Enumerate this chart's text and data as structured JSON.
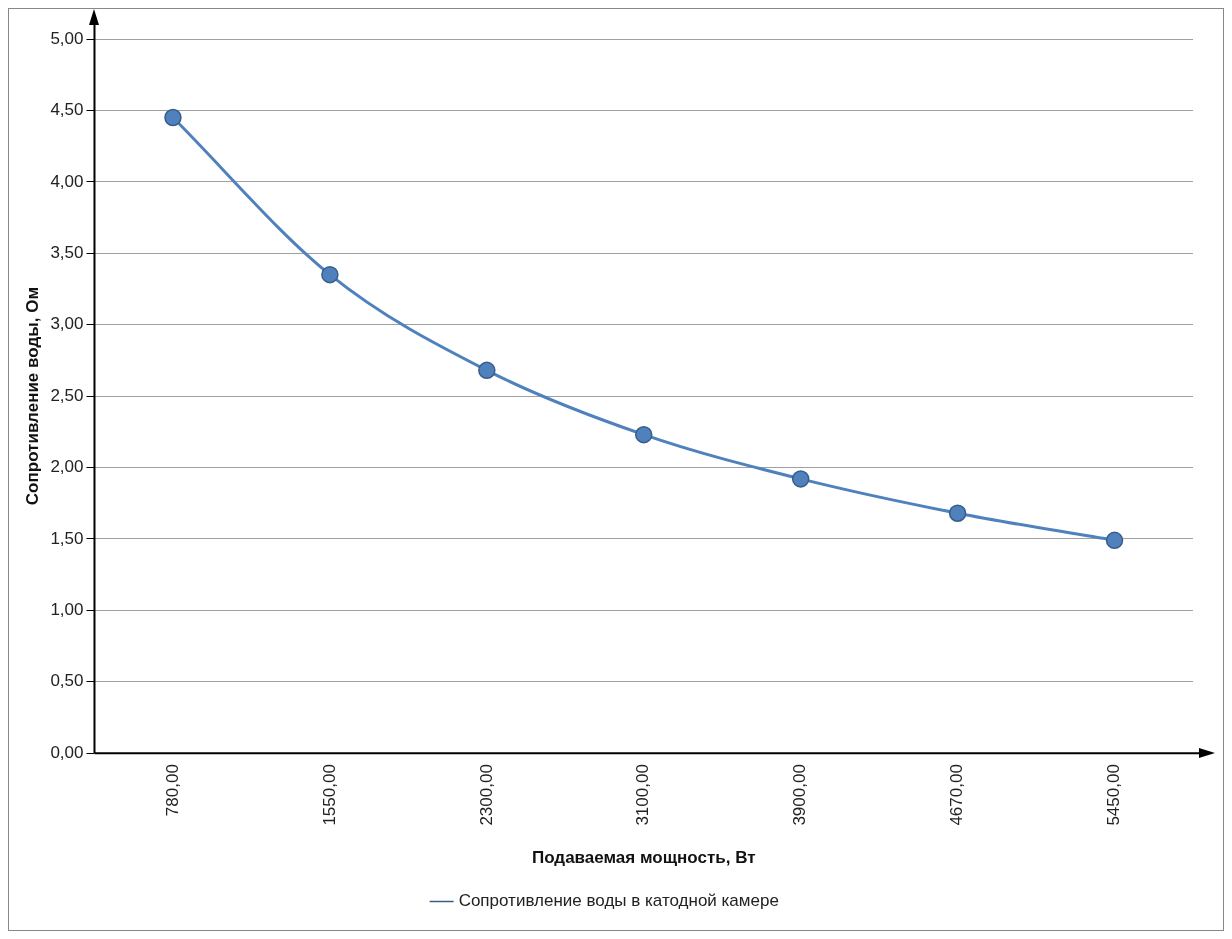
{
  "chart_data": {
    "type": "line",
    "xlabel": "Подаваемая мощность, Вт",
    "ylabel": "Сопротивление воды, Ом",
    "categories": [
      "780,00",
      "1550,00",
      "2300,00",
      "3100,00",
      "3900,00",
      "4670,00",
      "5450,00"
    ],
    "series": [
      {
        "name": "Сопротивление воды в катодной камере",
        "color": "#4f81bd",
        "values": [
          4.45,
          3.35,
          2.68,
          2.23,
          1.92,
          1.68,
          1.49
        ]
      }
    ],
    "ylim": [
      0,
      5
    ],
    "yticks": [
      {
        "value": 0,
        "label": "0,00"
      },
      {
        "value": 0.5,
        "label": "0,50"
      },
      {
        "value": 1,
        "label": "1,00"
      },
      {
        "value": 1.5,
        "label": "1,50"
      },
      {
        "value": 2,
        "label": "2,00"
      },
      {
        "value": 2.5,
        "label": "2,50"
      },
      {
        "value": 3,
        "label": "3,00"
      },
      {
        "value": 3.5,
        "label": "3,50"
      },
      {
        "value": 4,
        "label": "4,00"
      },
      {
        "value": 4.5,
        "label": "4,50"
      },
      {
        "value": 5,
        "label": "5,00"
      }
    ],
    "grid": "y",
    "legend": "bottom",
    "marker": "circle",
    "line_style": "solid"
  }
}
